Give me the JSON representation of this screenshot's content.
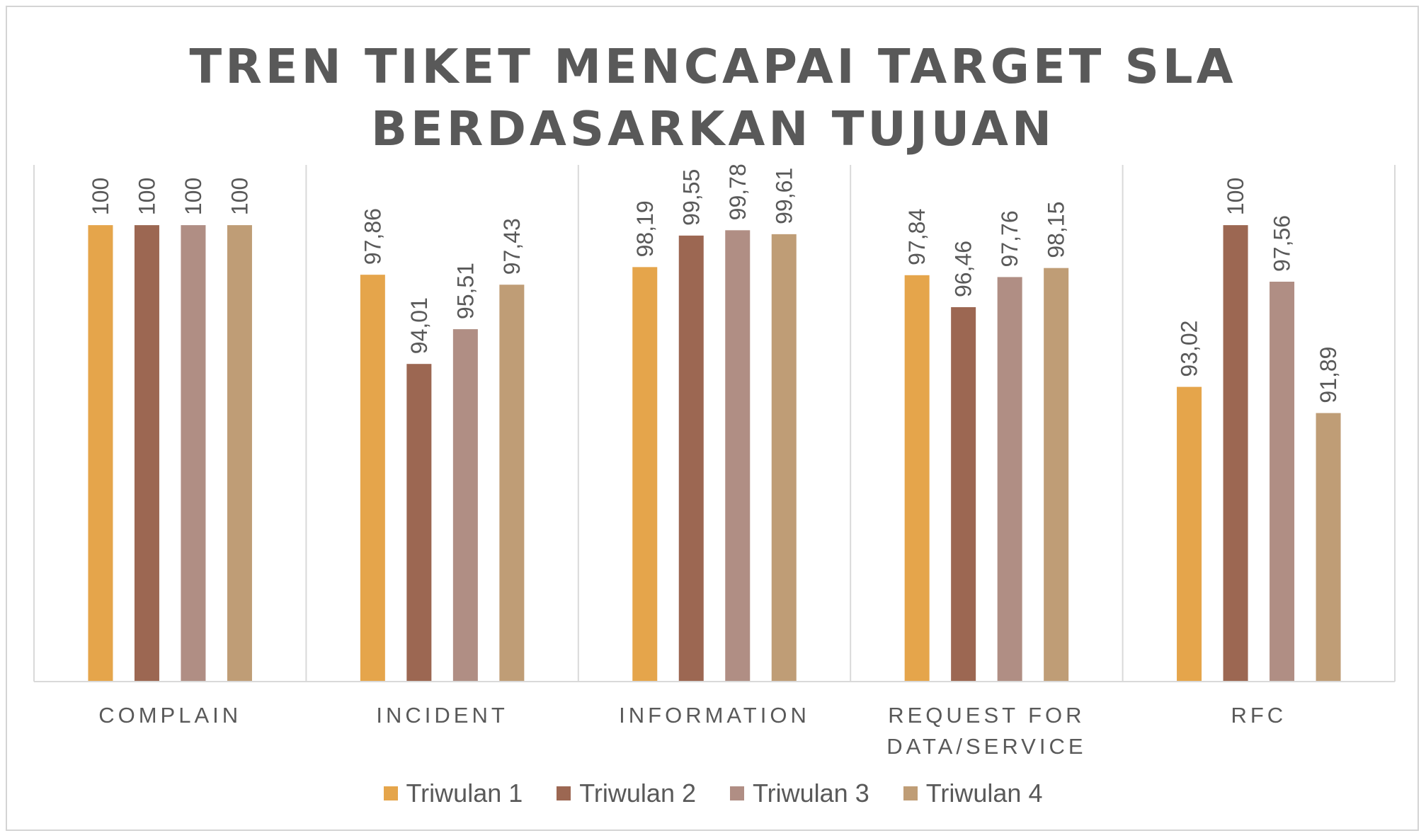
{
  "chart_data": {
    "type": "bar",
    "title_lines": [
      "TREN TIKET MENCAPAI TARGET SLA",
      "BERDASARKAN TUJUAN"
    ],
    "categories": [
      [
        "COMPLAIN"
      ],
      [
        "INCIDENT"
      ],
      [
        "INFORMATION"
      ],
      [
        "REQUEST FOR",
        "DATA/SERVICE"
      ],
      [
        "RFC"
      ]
    ],
    "series": [
      {
        "name": "Triwulan 1",
        "color": "#E5A54B",
        "values": [
          100,
          97.86,
          98.19,
          97.84,
          93.02
        ],
        "labels": [
          "100",
          "97,86",
          "98,19",
          "97,84",
          "93,02"
        ]
      },
      {
        "name": "Triwulan 2",
        "color": "#9C6752",
        "values": [
          100,
          94.01,
          99.55,
          96.46,
          100
        ],
        "labels": [
          "100",
          "94,01",
          "99,55",
          "96,46",
          "100"
        ]
      },
      {
        "name": "Triwulan 3",
        "color": "#B08E84",
        "values": [
          100,
          95.51,
          99.78,
          97.76,
          97.56
        ],
        "labels": [
          "100",
          "95,51",
          "99,78",
          "97,76",
          "97,56"
        ]
      },
      {
        "name": "Triwulan 4",
        "color": "#BF9D76",
        "values": [
          100,
          97.43,
          99.61,
          98.15,
          91.89
        ],
        "labels": [
          "100",
          "97,43",
          "99,61",
          "98,15",
          "91,89"
        ]
      }
    ],
    "ylim": [
      80.3,
      102.6
    ],
    "legend_position": "bottom",
    "grid": "vertical category separators"
  }
}
